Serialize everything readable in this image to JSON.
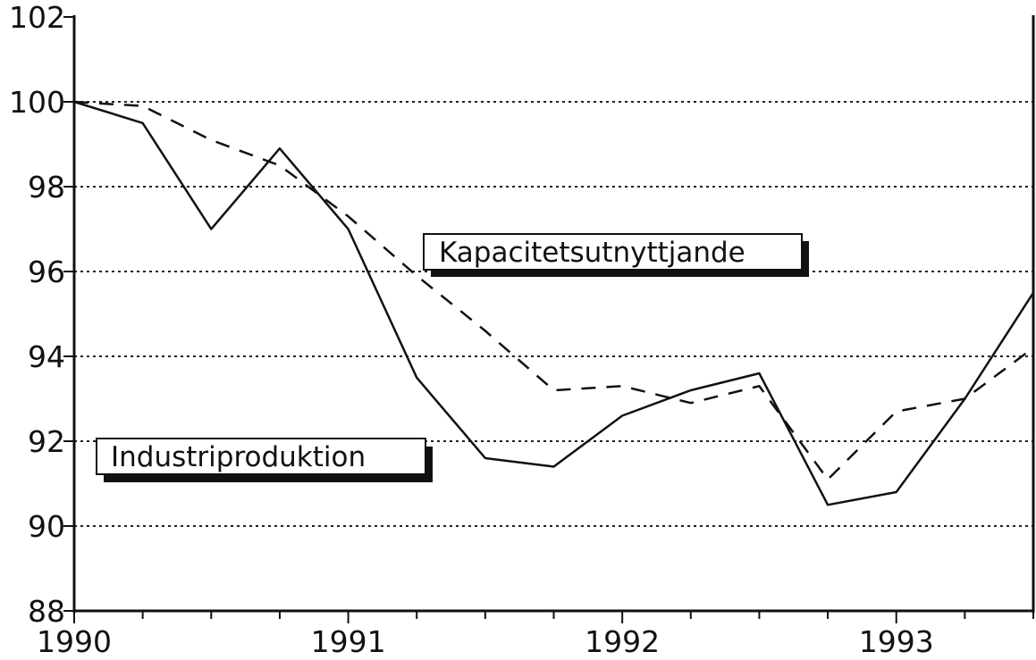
{
  "chart_data": {
    "type": "line",
    "x": [
      1990.0,
      1990.25,
      1990.5,
      1990.75,
      1991.0,
      1991.25,
      1991.5,
      1991.75,
      1992.0,
      1992.25,
      1992.5,
      1992.75,
      1993.0,
      1993.25,
      1993.5
    ],
    "series": [
      {
        "name": "Industriproduktion",
        "style": "solid",
        "values": [
          100.0,
          99.5,
          97.0,
          98.9,
          97.0,
          93.5,
          91.6,
          91.4,
          92.6,
          93.2,
          93.6,
          90.5,
          90.8,
          93.0,
          95.5
        ]
      },
      {
        "name": "Kapacitetsutnyttjande",
        "style": "dashed",
        "values": [
          100.0,
          99.9,
          99.1,
          98.5,
          97.3,
          95.9,
          94.6,
          93.2,
          93.3,
          92.9,
          93.3,
          91.1,
          92.7,
          93.0,
          94.2
        ]
      }
    ],
    "ylim": [
      88,
      102
    ],
    "xlim": [
      1990,
      1993.5
    ],
    "yticks": [
      "88",
      "90",
      "92",
      "94",
      "96",
      "98",
      "100",
      "102"
    ],
    "xticks": [
      "1990",
      "1991",
      "1992",
      "1993"
    ],
    "grid": "horizontal dotted",
    "title": "",
    "xlabel": "",
    "ylabel": ""
  },
  "colors": {
    "line": "#111111",
    "grid": "#222222",
    "shadow": "#111111",
    "background": "#ffffff"
  }
}
